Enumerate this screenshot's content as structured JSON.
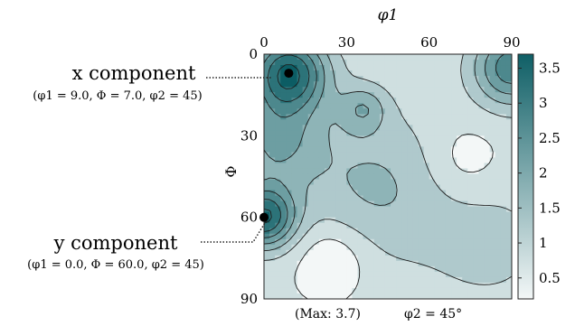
{
  "chart_data": {
    "type": "heatmap",
    "title": "",
    "xlabel": "φ1",
    "ylabel": "Φ",
    "x_ticks": [
      0,
      30,
      60,
      90
    ],
    "y_ticks": [
      0,
      30,
      60,
      90
    ],
    "x_range": [
      0,
      90
    ],
    "y_range": [
      0,
      90
    ],
    "y_inverted": true,
    "x_axis_position": "top",
    "colorbar": {
      "range": [
        0.2,
        3.7
      ],
      "ticks": [
        0.5,
        1,
        1.5,
        2,
        2.5,
        3,
        3.5
      ],
      "tick_labels": [
        "0.5",
        "1",
        "1.5",
        "2",
        "2.5",
        "3",
        "3.5"
      ],
      "colors": [
        "#f3f7f7",
        "#0f5f66"
      ]
    },
    "contour_levels": [
      0.5,
      1.0,
      1.5,
      2.0,
      2.5,
      3.0,
      3.5
    ],
    "grid": false,
    "components": [
      {
        "label": "x component",
        "detail": "(φ1 = 9.0, Φ = 7.0, φ2 = 45)",
        "phi1": 9.0,
        "Phi": 7.0,
        "phi2": 45
      },
      {
        "label": "y component",
        "detail": "(φ1 = 0.0, Φ = 60.0, φ2 = 45)",
        "phi1": 0.0,
        "Phi": 60.0,
        "phi2": 45
      }
    ],
    "max_text": "(Max: 3.7)",
    "section_text": "φ2 = 45°",
    "max_value": 3.7,
    "phi2_section": 45
  }
}
